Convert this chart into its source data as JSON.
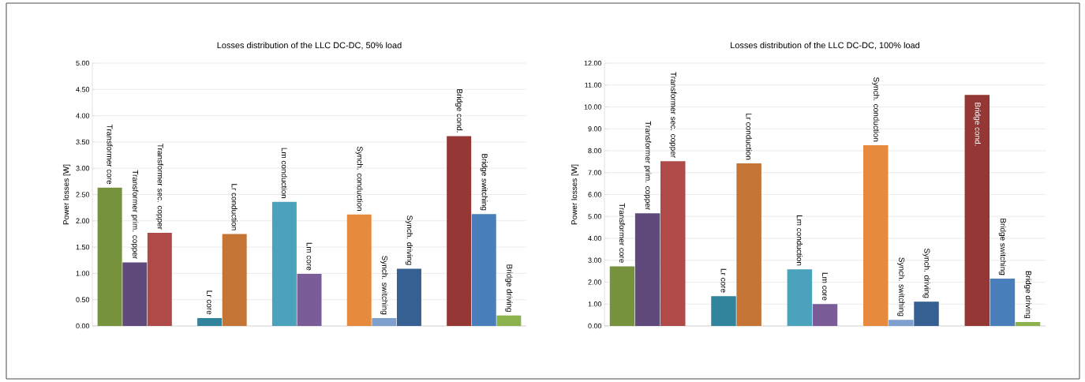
{
  "chart_data": [
    {
      "type": "bar",
      "title": "Losses distribution of the LLC DC-DC, 50% load",
      "ylabel": "Power losses [W]",
      "categories": [
        "Transformer core",
        "Transformer prim. copper",
        "Transformer sec. copper",
        null,
        "Lr core",
        "Lr conduction",
        null,
        "Lm conduction",
        "Lm core",
        null,
        "Synch. conduction",
        "Synch. switching",
        "Synch. driving",
        null,
        "Bridge cond.",
        "Bridge switching",
        "Bridge driving"
      ],
      "values": [
        2.63,
        1.21,
        1.77,
        null,
        0.15,
        1.75,
        null,
        2.36,
        0.99,
        null,
        2.12,
        0.15,
        1.09,
        null,
        3.61,
        2.13,
        0.2
      ],
      "colors": [
        "#76923c",
        "#604a7b",
        "#b04a48",
        null,
        "#31849b",
        "#c47535",
        null,
        "#4aa3bb",
        "#7a5c99",
        null,
        "#e68a3e",
        "#7f9fcf",
        "#376092",
        null,
        "#953735",
        "#4a7ebb",
        "#8cb24d"
      ],
      "ylim": [
        0,
        5
      ],
      "yticks": [
        {
          "value": 0,
          "label": "0.00"
        },
        {
          "value": 0.5,
          "label": "0.50"
        },
        {
          "value": 1,
          "label": "1.00"
        },
        {
          "value": 1.5,
          "label": "1.50"
        },
        {
          "value": 2,
          "label": "2.00"
        },
        {
          "value": 2.5,
          "label": "2.50"
        },
        {
          "value": 3,
          "label": "3.00"
        },
        {
          "value": 3.5,
          "label": "3.50"
        },
        {
          "value": 4,
          "label": "4.00"
        },
        {
          "value": 4.5,
          "label": "4.50"
        },
        {
          "value": 5,
          "label": "5.00"
        }
      ],
      "grid": "y",
      "tick_labels": "y"
    },
    {
      "type": "bar",
      "title": "Losses distribution of the LLC DC-DC, 100% load",
      "ylabel": "Power losses [W]",
      "categories": [
        "Transformer core",
        "Transformer prim. copper",
        "Transformer sec. copper",
        null,
        "Lr core",
        "Lr conduction",
        null,
        "Lm conduction",
        "Lm core",
        null,
        "Synch. conduction",
        "Synch. switching",
        "Synch. driving",
        null,
        "Bridge cond.",
        "Bridge switching",
        "Bridge driving"
      ],
      "values": [
        2.72,
        5.14,
        7.52,
        null,
        1.36,
        7.42,
        null,
        2.59,
        1.0,
        null,
        8.25,
        0.28,
        1.11,
        null,
        10.55,
        2.16,
        0.18
      ],
      "colors": [
        "#76923c",
        "#604a7b",
        "#b04a48",
        null,
        "#31849b",
        "#c47535",
        null,
        "#4aa3bb",
        "#7a5c99",
        null,
        "#e68a3e",
        "#7f9fcf",
        "#376092",
        null,
        "#953735",
        "#4a7ebb",
        "#8cb24d"
      ],
      "ylim": [
        0,
        12
      ],
      "yticks": [
        {
          "value": 0,
          "label": "0.00"
        },
        {
          "value": 1,
          "label": "1.00"
        },
        {
          "value": 2,
          "label": "2.00"
        },
        {
          "value": 3,
          "label": "3.00"
        },
        {
          "value": 4,
          "label": "4.00"
        },
        {
          "value": 5,
          "label": "5.00"
        },
        {
          "value": 6,
          "label": "6.00"
        },
        {
          "value": 7,
          "label": "7.00"
        },
        {
          "value": 8,
          "label": "8.00"
        },
        {
          "value": 9,
          "label": "9.00"
        },
        {
          "value": 10,
          "label": "10.00"
        },
        {
          "value": 11,
          "label": "11.00"
        },
        {
          "value": 12,
          "label": "12.00"
        }
      ],
      "grid": "y",
      "tick_labels": "y"
    }
  ]
}
